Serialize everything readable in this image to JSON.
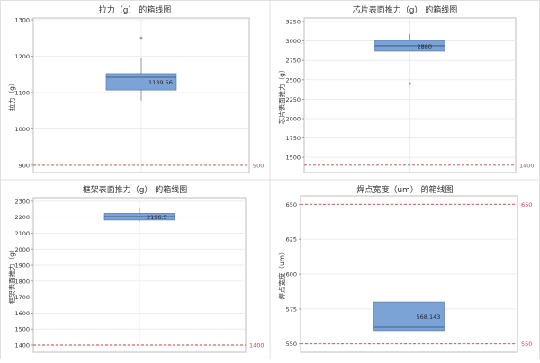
{
  "colors": {
    "box_fill": "#7ba3d6",
    "box_stroke": "#4a6e9e",
    "median": "#2f4b73",
    "spec_line": "#b04a55",
    "grid": "#e8e8e8",
    "frame": "#c8c8c8"
  },
  "chart_data": [
    {
      "type": "box",
      "title": "拉力（g） 的箱线图",
      "ylabel": "拉力（g）",
      "ylim": [
        880,
        1305
      ],
      "yticks": [
        900,
        1000,
        1100,
        1200,
        1300
      ],
      "box": {
        "q1": 1107,
        "median": 1142,
        "q3": 1152,
        "whisker_low": 1078,
        "whisker_high": 1196
      },
      "outliers": [
        1248
      ],
      "data_label": "1139.56",
      "reference_lines": [
        {
          "value": 900,
          "label": "900"
        }
      ]
    },
    {
      "type": "box",
      "title": "芯片表面推力（g） 的箱线图",
      "ylabel": "芯片表面推力（g）",
      "ylim": [
        1305,
        3296
      ],
      "yticks": [
        1500,
        1750,
        2000,
        2250,
        2500,
        2750,
        3000,
        3250
      ],
      "box": {
        "q1": 2868,
        "median": 2938,
        "q3": 3007,
        "whisker_low": 2868,
        "whisker_high": 3088
      },
      "outliers": [
        2440
      ],
      "data_label": "2880",
      "reference_lines": [
        {
          "value": 1400,
          "label": "1400"
        }
      ]
    },
    {
      "type": "box",
      "title": "框架表面推力（g） 的箱线图",
      "ylabel": "框架表面推力（g）",
      "ylim": [
        1355,
        2322
      ],
      "yticks": [
        1400,
        1500,
        1600,
        1700,
        1800,
        1900,
        2000,
        2100,
        2200,
        2300
      ],
      "box": {
        "q1": 2182,
        "median": 2204,
        "q3": 2224,
        "whisker_low": 2170,
        "whisker_high": 2255
      },
      "outliers": [],
      "data_label": "2196.5",
      "reference_lines": [
        {
          "value": 1400,
          "label": "1400"
        }
      ]
    },
    {
      "type": "box",
      "title": "焊点宽度（um） 的箱线图",
      "ylabel": "焊点宽度（um）",
      "ylim": [
        544,
        656
      ],
      "yticks": [
        550,
        575,
        600,
        625,
        650
      ],
      "box": {
        "q1": 559.5,
        "median": 562,
        "q3": 580,
        "whisker_low": 556,
        "whisker_high": 583
      },
      "outliers": [],
      "data_label": "568.143",
      "reference_lines": [
        {
          "value": 550,
          "label": "550"
        },
        {
          "value": 650,
          "label": "650"
        }
      ]
    }
  ]
}
